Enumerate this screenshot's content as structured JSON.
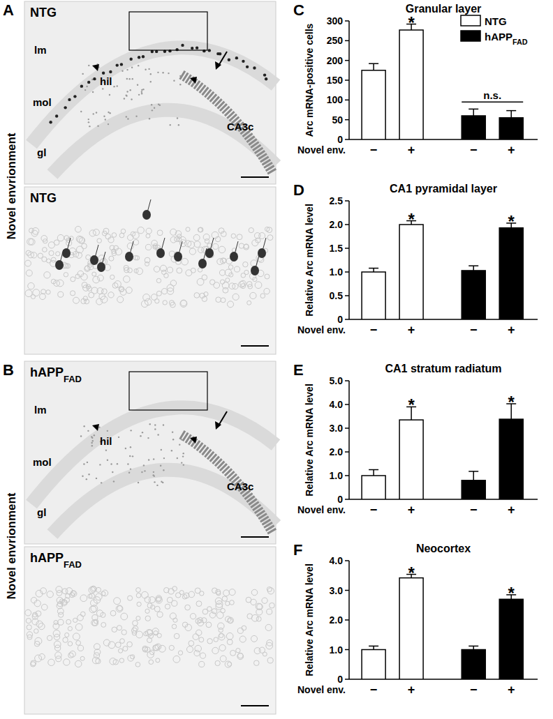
{
  "chart_data": [
    {
      "type": "bar",
      "panel": "C",
      "title": "Granular layer",
      "y_label": "Arc mRNA-positive cells",
      "x_label": "Novel env.",
      "categories": [
        "−",
        "+",
        "−",
        "+"
      ],
      "series": [
        {
          "name": "NTG",
          "color": "#ffffff",
          "values": [
            175,
            277,
            null,
            null
          ],
          "errors": [
            17,
            15,
            null,
            null
          ]
        },
        {
          "name": "hAPP",
          "subscript": "FAD",
          "color": "#000000",
          "values": [
            null,
            null,
            60,
            55
          ],
          "errors": [
            null,
            null,
            17,
            18
          ]
        }
      ],
      "annotations": [
        {
          "text": "*",
          "indices": [
            1
          ]
        },
        {
          "text": "n.s.",
          "indices": [
            2,
            3
          ]
        }
      ],
      "ylim": [
        0,
        300
      ],
      "yticks": [
        0,
        50,
        100,
        150,
        200,
        250,
        300
      ],
      "legend": "top-right"
    },
    {
      "type": "bar",
      "panel": "D",
      "title": "CA1 pyramidal layer",
      "y_label": "Relative Arc mRNA level",
      "x_label": "Novel env.",
      "categories": [
        "−",
        "+",
        "−",
        "+"
      ],
      "series": [
        {
          "name": "NTG",
          "color": "#ffffff",
          "values": [
            1.0,
            2.0,
            null,
            null
          ],
          "errors": [
            0.08,
            0.08,
            null,
            null
          ]
        },
        {
          "name": "hAPP",
          "subscript": "FAD",
          "color": "#000000",
          "values": [
            null,
            null,
            1.03,
            1.93
          ],
          "errors": [
            null,
            null,
            0.1,
            0.1
          ]
        }
      ],
      "annotations": [
        {
          "text": "*",
          "indices": [
            1
          ]
        },
        {
          "text": "*",
          "indices": [
            3
          ]
        }
      ],
      "ylim": [
        0,
        2.5
      ],
      "yticks": [
        0,
        0.5,
        {
          "value": 1,
          "label": "1.0"
        },
        1.5,
        {
          "value": 2,
          "label": "2.0"
        },
        2.5
      ]
    },
    {
      "type": "bar",
      "panel": "E",
      "title": "CA1 stratum radiatum",
      "y_label": "Relative Arc mRNA level",
      "x_label": "Novel env.",
      "categories": [
        "−",
        "+",
        "−",
        "+"
      ],
      "series": [
        {
          "name": "NTG",
          "color": "#ffffff",
          "values": [
            1.0,
            3.35,
            null,
            null
          ],
          "errors": [
            0.25,
            0.55,
            null,
            null
          ]
        },
        {
          "name": "hAPP",
          "subscript": "FAD",
          "color": "#000000",
          "values": [
            null,
            null,
            0.8,
            3.38
          ],
          "errors": [
            null,
            null,
            0.38,
            0.65
          ]
        }
      ],
      "annotations": [
        {
          "text": "*",
          "indices": [
            1
          ]
        },
        {
          "text": "*",
          "indices": [
            3
          ]
        }
      ],
      "ylim": [
        0,
        5
      ],
      "yticks": [
        0,
        {
          "value": 1,
          "label": "1.0"
        },
        {
          "value": 2,
          "label": "2.0"
        },
        {
          "value": 3,
          "label": "3.0"
        },
        {
          "value": 4,
          "label": "4.0"
        },
        {
          "value": 5,
          "label": "5.0"
        }
      ]
    },
    {
      "type": "bar",
      "panel": "F",
      "title": "Neocortex",
      "y_label": "Relative Arc mRNA level",
      "x_label": "Novel env.",
      "categories": [
        "−",
        "+",
        "−",
        "+"
      ],
      "series": [
        {
          "name": "NTG",
          "color": "#ffffff",
          "values": [
            1.0,
            3.42,
            null,
            null
          ],
          "errors": [
            0.12,
            0.12,
            null,
            null
          ]
        },
        {
          "name": "hAPP",
          "subscript": "FAD",
          "color": "#000000",
          "values": [
            null,
            null,
            1.0,
            2.7
          ],
          "errors": [
            null,
            null,
            0.12,
            0.15
          ]
        }
      ],
      "annotations": [
        {
          "text": "*",
          "indices": [
            1
          ]
        },
        {
          "text": "*",
          "indices": [
            3
          ]
        }
      ],
      "ylim": [
        0,
        4
      ],
      "yticks": [
        0,
        {
          "value": 1,
          "label": "1.0"
        },
        {
          "value": 2,
          "label": "2.0"
        },
        {
          "value": 3,
          "label": "3.0"
        },
        {
          "value": 4,
          "label": "4.0"
        }
      ]
    }
  ],
  "image_panels": [
    {
      "panel": "A",
      "side_label": "Novel envrionment",
      "top_title": {
        "text": "NTG"
      },
      "labels": [
        "lm",
        "hil",
        "mol",
        "gl",
        "CA3c"
      ],
      "bottom_title": {
        "text": "NTG"
      }
    },
    {
      "panel": "B",
      "side_label": "Novel envrionment",
      "top_title": {
        "text": "hAPP",
        "subscript": "FAD"
      },
      "labels": [
        "lm",
        "hil",
        "mol",
        "gl",
        "CA3c"
      ],
      "bottom_title": {
        "text": "hAPP",
        "subscript": "FAD"
      }
    }
  ]
}
